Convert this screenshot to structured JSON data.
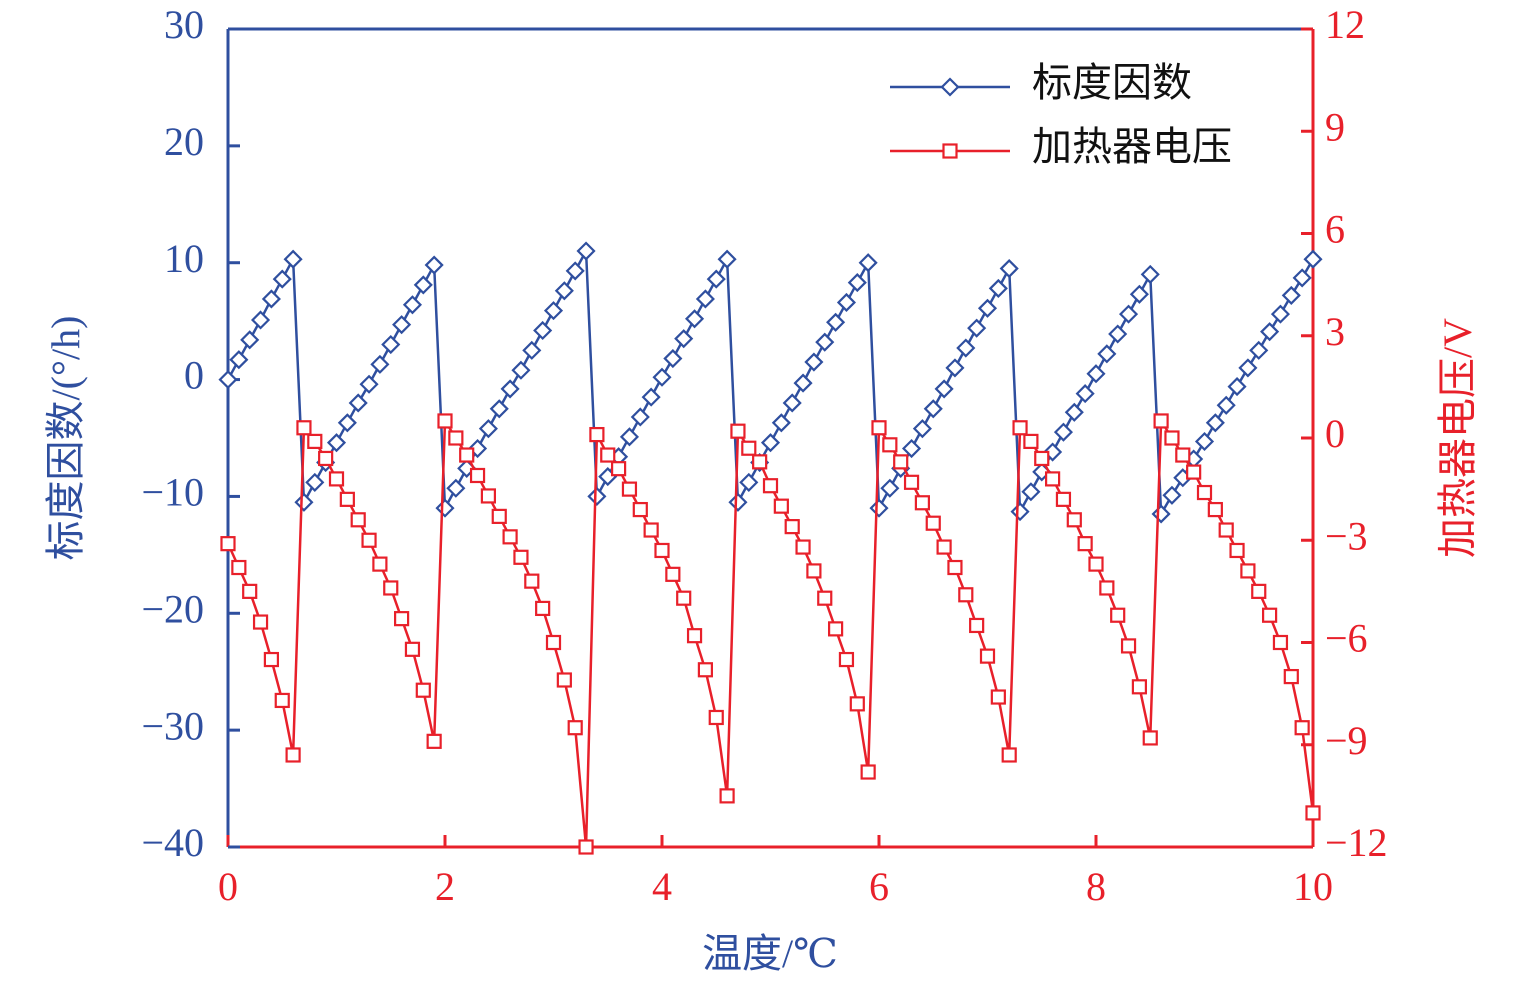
{
  "chart_data": {
    "type": "line",
    "x_label": "温度/℃",
    "y_label": "标度因数/(°/h)",
    "y2_label": "加热器电压/V",
    "x": [
      0,
      0.1,
      0.2,
      0.3,
      0.4,
      0.5,
      0.6,
      0.7,
      0.8,
      0.9,
      1,
      1.1,
      1.2,
      1.3,
      1.4,
      1.5,
      1.6,
      1.7,
      1.8,
      1.9,
      2,
      2.1,
      2.2,
      2.3,
      2.4,
      2.5,
      2.6,
      2.7,
      2.8,
      2.9,
      3,
      3.1,
      3.2,
      3.3,
      3.4,
      3.5,
      3.6,
      3.7,
      3.8,
      3.9,
      4,
      4.1,
      4.2,
      4.3,
      4.4,
      4.5,
      4.6,
      4.7,
      4.8,
      4.9,
      5,
      5.1,
      5.2,
      5.3,
      5.4,
      5.5,
      5.6,
      5.7,
      5.8,
      5.9,
      6,
      6.1,
      6.2,
      6.3,
      6.4,
      6.5,
      6.6,
      6.7,
      6.8,
      6.9,
      7,
      7.1,
      7.2,
      7.3,
      7.4,
      7.5,
      7.6,
      7.7,
      7.8,
      7.9,
      8,
      8.1,
      8.2,
      8.3,
      8.4,
      8.5,
      8.6,
      8.7,
      8.8,
      8.9,
      9,
      9.1,
      9.2,
      9.3,
      9.4,
      9.5,
      9.6,
      9.7,
      9.8,
      9.9,
      10
    ],
    "series": [
      {
        "name": "标度因数",
        "color": "#2f4f9f",
        "marker": "diamond",
        "values": [
          0,
          1.7,
          3.4,
          5.1,
          6.9,
          8.6,
          10.3,
          -10.5,
          -8.8,
          -7.1,
          -5.4,
          -3.7,
          -2.0,
          -0.4,
          1.3,
          3.0,
          4.7,
          6.4,
          8.1,
          9.8,
          -11,
          -9.3,
          -7.6,
          -5.9,
          -4.2,
          -2.5,
          -0.8,
          0.8,
          2.5,
          4.2,
          5.9,
          7.6,
          9.3,
          11.0,
          -10,
          -8.3,
          -6.6,
          -4.9,
          -3.2,
          -1.5,
          0.2,
          1.8,
          3.5,
          5.2,
          6.9,
          8.6,
          10.3,
          -10.5,
          -8.8,
          -7.1,
          -5.4,
          -3.7,
          -2.0,
          -0.3,
          1.5,
          3.2,
          4.9,
          6.6,
          8.3,
          10.0,
          -11,
          -9.3,
          -7.6,
          -5.9,
          -4.2,
          -2.5,
          -0.8,
          1.0,
          2.7,
          4.4,
          6.1,
          7.8,
          9.5,
          -11.3,
          -9.6,
          -7.9,
          -6.2,
          -4.5,
          -2.8,
          -1.2,
          0.5,
          2.2,
          3.9,
          5.6,
          7.3,
          9.0,
          -11.5,
          -9.9,
          -8.4,
          -6.8,
          -5.3,
          -3.7,
          -2.2,
          -0.6,
          1.0,
          2.5,
          4.1,
          5.6,
          7.2,
          8.7,
          10.3
        ]
      },
      {
        "name": "加热器电压",
        "color": "#e8202a",
        "marker": "square",
        "axis": "y2",
        "values": [
          -3.1,
          -3.8,
          -4.5,
          -5.4,
          -6.5,
          -7.7,
          -9.3,
          0.3,
          -0.1,
          -0.6,
          -1.2,
          -1.8,
          -2.4,
          -3.0,
          -3.7,
          -4.4,
          -5.3,
          -6.2,
          -7.4,
          -8.9,
          0.5,
          0.0,
          -0.5,
          -1.1,
          -1.7,
          -2.3,
          -2.9,
          -3.5,
          -4.2,
          -5.0,
          -6.0,
          -7.1,
          -8.5,
          -12.0,
          0.1,
          -0.5,
          -0.9,
          -1.5,
          -2.1,
          -2.7,
          -3.3,
          -4.0,
          -4.7,
          -5.8,
          -6.8,
          -8.2,
          -10.5,
          0.2,
          -0.3,
          -0.7,
          -1.4,
          -2.0,
          -2.6,
          -3.2,
          -3.9,
          -4.7,
          -5.6,
          -6.5,
          -7.8,
          -9.8,
          0.3,
          -0.2,
          -0.7,
          -1.3,
          -1.9,
          -2.5,
          -3.2,
          -3.8,
          -4.6,
          -5.5,
          -6.4,
          -7.6,
          -9.3,
          0.3,
          -0.1,
          -0.6,
          -1.2,
          -1.8,
          -2.4,
          -3.1,
          -3.7,
          -4.4,
          -5.2,
          -6.1,
          -7.3,
          -8.8,
          0.5,
          0.0,
          -0.5,
          -1.0,
          -1.6,
          -2.1,
          -2.7,
          -3.3,
          -3.9,
          -4.5,
          -5.2,
          -6.0,
          -7.0,
          -8.5,
          -11.0
        ]
      }
    ],
    "xlim": [
      0,
      10
    ],
    "xticks": [
      0,
      2,
      4,
      6,
      8,
      10
    ],
    "ylim": [
      -40,
      30
    ],
    "yticks": [
      {
        "value": -40,
        "label": "−40"
      },
      {
        "value": -30,
        "label": "−30"
      },
      {
        "value": -20,
        "label": "−20"
      },
      {
        "value": -10,
        "label": "−10"
      },
      0,
      10,
      20,
      30
    ],
    "y2lim": [
      -12,
      12
    ],
    "y2ticks": [
      {
        "value": -12,
        "label": "−12"
      },
      {
        "value": -9,
        "label": "−9"
      },
      {
        "value": -6,
        "label": "−6"
      },
      {
        "value": -3,
        "label": "−3"
      },
      0,
      3,
      6,
      9,
      12
    ],
    "legend": "upper right",
    "grid": false
  }
}
